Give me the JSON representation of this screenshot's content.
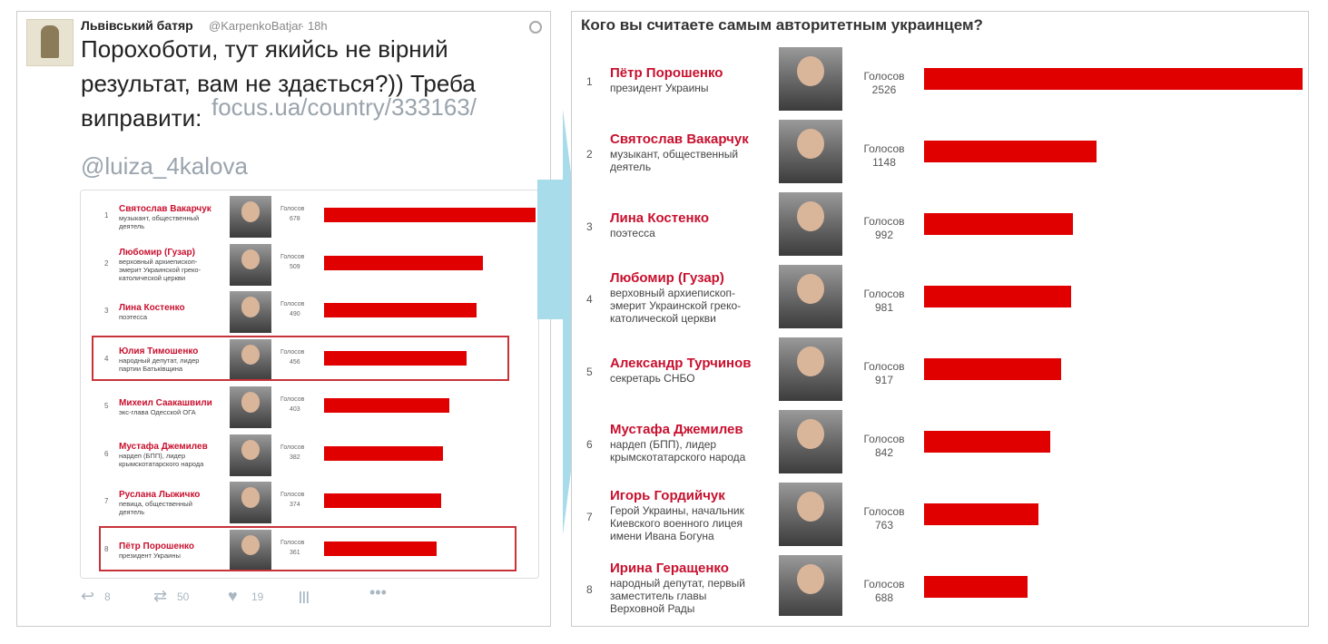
{
  "tweet": {
    "author": "Львівський батяр",
    "handle": "@KarpenkoBatjar",
    "time": "· 18h",
    "text_lines": [
      "Порохоботи, тут якийсь не вірний",
      "результат, вам не здається?)) Треба",
      "виправити:"
    ],
    "link": "focus.ua/country/333163/",
    "mention": "@luiza_4kalova",
    "embedded_poll": {
      "votes_label": "Голосов",
      "rows": [
        {
          "rank": "1",
          "name": "Святослав Вакарчук",
          "description": [
            "музыкант, общественный",
            "деятель"
          ],
          "votes": 678,
          "highlighted": false
        },
        {
          "rank": "2",
          "name": "Любомир (Гузар)",
          "description": [
            "верховный архиепископ-",
            "эмерит Украинской греко-",
            "католической церкви"
          ],
          "votes": 509,
          "highlighted": false
        },
        {
          "rank": "3",
          "name": "Лина Костенко",
          "description": [
            "поэтесса"
          ],
          "votes": 490,
          "highlighted": false
        },
        {
          "rank": "4",
          "name": "Юлия Тимошенко",
          "description": [
            "народный депутат, лидер",
            "партии Батьківщина"
          ],
          "votes": 456,
          "highlighted": true
        },
        {
          "rank": "5",
          "name": "Михеил Саакашвили",
          "description": [
            "экс-глава Одесской ОГА"
          ],
          "votes": 403,
          "highlighted": false
        },
        {
          "rank": "6",
          "name": "Мустафа Джемилев",
          "description": [
            "нардеп (БПП), лидер",
            "крымскотатарского народа"
          ],
          "votes": 382,
          "highlighted": false
        },
        {
          "rank": "7",
          "name": "Руслана Лыжичко",
          "description": [
            "певица, общественный",
            "деятель"
          ],
          "votes": 374,
          "highlighted": false
        },
        {
          "rank": "8",
          "name": "Пётр Порошенко",
          "description": [
            "президент Украины"
          ],
          "votes": 361,
          "highlighted": true
        }
      ]
    },
    "actions": {
      "replies": 8,
      "retweets": 50,
      "likes": 19
    }
  },
  "poll": {
    "title": "Кого вы считаете самым авторитетным украинцем?",
    "votes_label": "Голосов",
    "rows": [
      {
        "rank": "1",
        "name": "Пётр Порошенко",
        "description": [
          "президент Украины"
        ],
        "votes": 2526
      },
      {
        "rank": "2",
        "name": "Святослав Вакарчук",
        "description": [
          "музыкант, общественный",
          "деятель"
        ],
        "votes": 1148
      },
      {
        "rank": "3",
        "name": "Лина Костенко",
        "description": [
          "поэтесса"
        ],
        "votes": 992
      },
      {
        "rank": "4",
        "name": "Любомир (Гузар)",
        "description": [
          "верховный архиепископ-",
          "эмерит Украинской греко-",
          "католической церкви"
        ],
        "votes": 981
      },
      {
        "rank": "5",
        "name": "Александр Турчинов",
        "description": [
          "секретарь СНБО"
        ],
        "votes": 917
      },
      {
        "rank": "6",
        "name": "Мустафа Джемилев",
        "description": [
          "нардеп (БПП), лидер",
          "крымскотатарского народа"
        ],
        "votes": 842
      },
      {
        "rank": "7",
        "name": "Игорь Гордийчук",
        "description": [
          "Герой Украины, начальник",
          "Киевского военного лицея",
          "имени Ивана Богуна"
        ],
        "votes": 763
      },
      {
        "rank": "8",
        "name": "Ирина Геращенко",
        "description": [
          "народный депутат, первый",
          "заместитель главы",
          "Верховной Рады"
        ],
        "votes": 688
      }
    ]
  }
}
